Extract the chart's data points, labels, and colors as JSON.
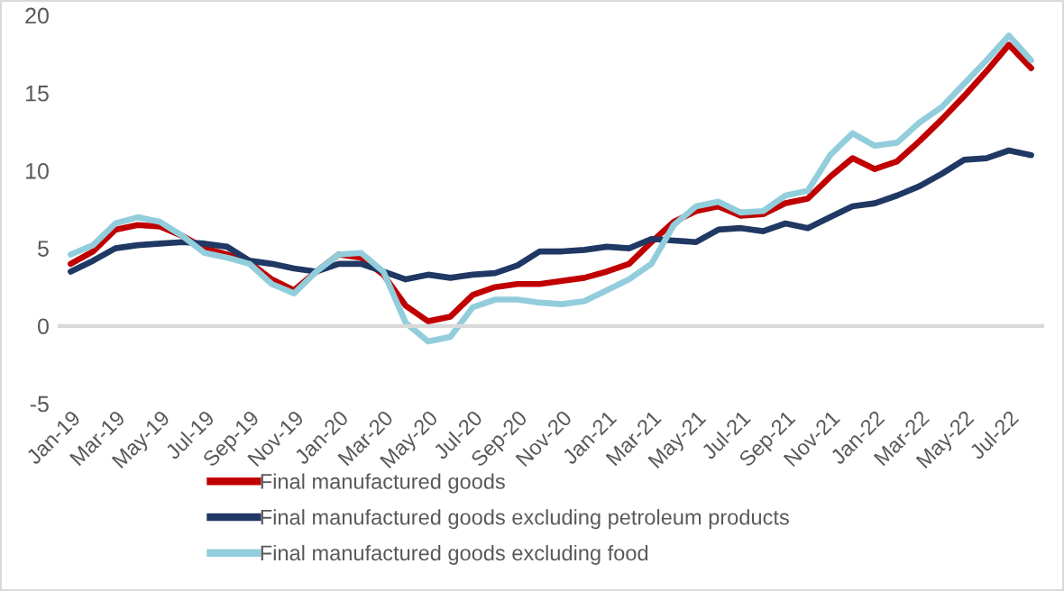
{
  "chart_data": {
    "type": "line",
    "categories": [
      "Jan-19",
      null,
      "Mar-19",
      null,
      "May-19",
      null,
      "Jul-19",
      null,
      "Sep-19",
      null,
      "Nov-19",
      null,
      "Jan-20",
      null,
      "Mar-20",
      null,
      "May-20",
      null,
      "Jul-20",
      null,
      "Sep-20",
      null,
      "Nov-20",
      null,
      "Jan-21",
      null,
      "Mar-21",
      null,
      "May-21",
      null,
      "Jul-21",
      null,
      "Sep-21",
      null,
      "Nov-21",
      null,
      "Jan-22",
      null,
      "Mar-22",
      null,
      "May-22",
      null,
      "Jul-22",
      null
    ],
    "series": [
      {
        "name": "Final manufactured goods",
        "color": "#c00000",
        "values": [
          4.0,
          4.8,
          6.2,
          6.5,
          6.4,
          5.8,
          5.0,
          4.6,
          4.1,
          3.0,
          2.3,
          3.5,
          4.6,
          4.4,
          3.3,
          1.3,
          0.3,
          0.6,
          2.0,
          2.5,
          2.7,
          2.7,
          2.9,
          3.1,
          3.5,
          4.0,
          5.4,
          6.7,
          7.4,
          7.7,
          7.1,
          7.2,
          7.9,
          8.2,
          9.6,
          10.8,
          10.1,
          10.6,
          11.9,
          13.3,
          14.8,
          16.4,
          18.1,
          16.6
        ]
      },
      {
        "name": "Final manufactured goods excluding petroleum products",
        "color": "#1f3864",
        "values": [
          3.5,
          4.2,
          5.0,
          5.2,
          5.3,
          5.4,
          5.3,
          5.1,
          4.2,
          4.0,
          3.7,
          3.5,
          4.0,
          4.0,
          3.5,
          3.0,
          3.3,
          3.1,
          3.3,
          3.4,
          3.9,
          4.8,
          4.8,
          4.9,
          5.1,
          5.0,
          5.6,
          5.5,
          5.4,
          6.2,
          6.3,
          6.1,
          6.6,
          6.3,
          7.0,
          7.7,
          7.9,
          8.4,
          9.0,
          9.8,
          10.7,
          10.8,
          11.3,
          11.0
        ]
      },
      {
        "name": "Final manufactured goods excluding food",
        "color": "#92cddc",
        "values": [
          4.6,
          5.2,
          6.6,
          7.0,
          6.7,
          5.8,
          4.7,
          4.4,
          4.0,
          2.7,
          2.1,
          3.5,
          4.6,
          4.7,
          3.5,
          0.2,
          -1.0,
          -0.7,
          1.2,
          1.7,
          1.7,
          1.5,
          1.4,
          1.6,
          2.3,
          3.0,
          4.0,
          6.5,
          7.7,
          8.0,
          7.3,
          7.4,
          8.4,
          8.7,
          11.0,
          12.4,
          11.6,
          11.8,
          13.1,
          14.1,
          15.6,
          17.1,
          18.7,
          17.1
        ]
      }
    ],
    "ylim": [
      -5,
      20
    ],
    "yticks": [
      -5,
      0,
      5,
      10,
      15,
      20
    ],
    "legend": "bottom",
    "marker": "none",
    "line_style": "solid"
  }
}
